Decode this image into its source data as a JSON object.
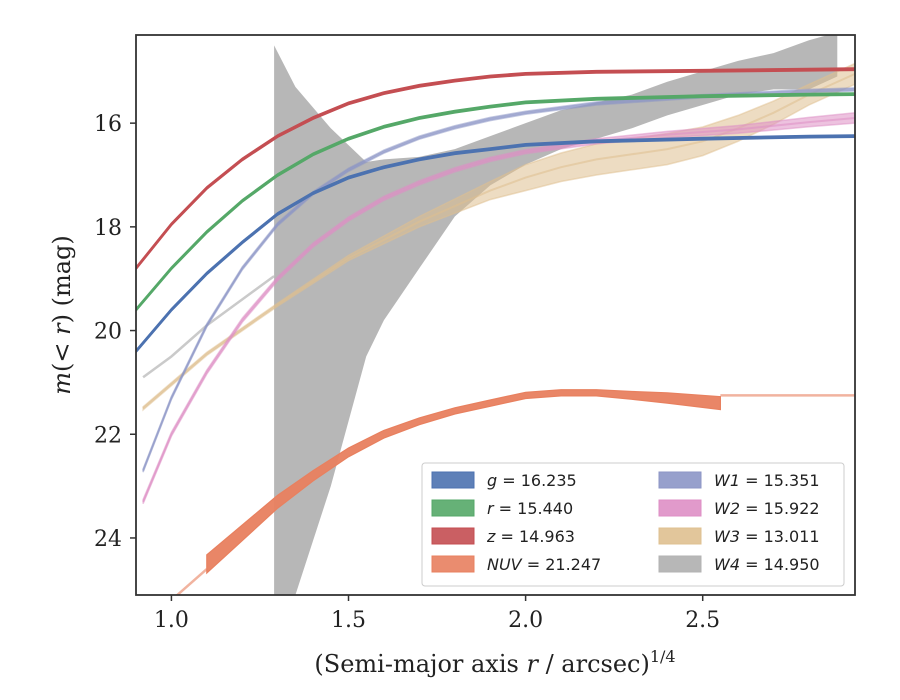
{
  "chart_data": {
    "type": "line",
    "xlabel": "(Semi-major axis r / arcsec)^1/4",
    "ylabel": "m(< r) (mag)",
    "xlim": [
      0.9,
      2.93
    ],
    "ylim": [
      25.1,
      14.3
    ],
    "y_inverted": true,
    "xticks": [
      1.0,
      1.5,
      2.0,
      2.5
    ],
    "yticks": [
      16,
      18,
      20,
      22,
      24
    ],
    "xtick_labels": [
      "1.0",
      "1.5",
      "2.0",
      "2.5"
    ],
    "ytick_labels": [
      "16",
      "18",
      "20",
      "22",
      "24"
    ],
    "grid": false,
    "legend_position": "lower-right",
    "series": [
      {
        "name": "g = 16.235",
        "label_var": "g",
        "label_val": "= 16.235",
        "color": "#4c72b0",
        "x": [
          0.9,
          1.0,
          1.1,
          1.2,
          1.3,
          1.4,
          1.5,
          1.6,
          1.7,
          1.8,
          1.9,
          2.0,
          2.2,
          2.5,
          2.8,
          2.93
        ],
        "y": [
          20.4,
          19.6,
          18.9,
          18.3,
          17.75,
          17.35,
          17.05,
          16.85,
          16.7,
          16.58,
          16.5,
          16.42,
          16.35,
          16.3,
          16.26,
          16.25
        ],
        "band": 0.05
      },
      {
        "name": "r = 15.440",
        "label_var": "r",
        "label_val": "= 15.440",
        "color": "#55a868",
        "x": [
          0.9,
          1.0,
          1.1,
          1.2,
          1.3,
          1.4,
          1.5,
          1.6,
          1.7,
          1.8,
          1.9,
          2.0,
          2.2,
          2.5,
          2.8,
          2.93
        ],
        "y": [
          19.6,
          18.8,
          18.1,
          17.5,
          17.0,
          16.6,
          16.3,
          16.07,
          15.9,
          15.78,
          15.68,
          15.6,
          15.53,
          15.48,
          15.45,
          15.44
        ],
        "band": 0.05
      },
      {
        "name": "z = 14.963",
        "label_var": "z",
        "label_val": "= 14.963",
        "color": "#c44e52",
        "x": [
          0.9,
          1.0,
          1.1,
          1.2,
          1.3,
          1.4,
          1.5,
          1.6,
          1.7,
          1.8,
          1.9,
          2.0,
          2.2,
          2.5,
          2.8,
          2.93
        ],
        "y": [
          18.8,
          17.95,
          17.25,
          16.7,
          16.25,
          15.9,
          15.62,
          15.42,
          15.28,
          15.18,
          15.1,
          15.05,
          15.01,
          14.99,
          14.97,
          14.96
        ],
        "band": 0.05
      },
      {
        "name": "NUV = 21.247",
        "label_var": "NUV",
        "label_val": "= 21.247",
        "color": "#e8805f",
        "x": [
          1.1,
          1.2,
          1.3,
          1.4,
          1.5,
          1.6,
          1.7,
          1.8,
          1.9,
          2.0,
          2.1,
          2.2,
          2.3,
          2.4,
          2.55
        ],
        "y": [
          24.5,
          23.9,
          23.3,
          22.8,
          22.35,
          22.0,
          21.75,
          21.55,
          21.4,
          21.25,
          21.2,
          21.2,
          21.25,
          21.3,
          21.4
        ],
        "band_w": [
          0.35,
          0.3,
          0.25,
          0.2,
          0.17,
          0.15,
          0.13,
          0.12,
          0.12,
          0.12,
          0.12,
          0.12,
          0.15,
          0.2,
          0.25
        ],
        "thin_x": [
          1.0,
          1.1
        ],
        "thin_y": [
          25.2,
          24.6
        ],
        "ext_x": [
          2.55,
          2.93
        ],
        "ext_y": [
          21.25,
          21.25
        ]
      },
      {
        "name": "W1 = 15.351",
        "label_var": "W1",
        "label_val": "= 15.351",
        "color": "#8c96c6",
        "x": [
          0.92,
          1.0,
          1.1,
          1.2,
          1.3,
          1.4,
          1.5,
          1.6,
          1.7,
          1.8,
          1.9,
          2.0,
          2.2,
          2.5,
          2.8,
          2.93
        ],
        "y": [
          22.7,
          21.3,
          19.9,
          18.8,
          17.95,
          17.35,
          16.9,
          16.55,
          16.28,
          16.08,
          15.92,
          15.8,
          15.62,
          15.48,
          15.38,
          15.35
        ],
        "band": 0.06
      },
      {
        "name": "W2 = 15.922",
        "label_var": "W2",
        "label_val": "= 15.922",
        "color": "#de8fc5",
        "x": [
          0.92,
          1.0,
          1.1,
          1.2,
          1.3,
          1.4,
          1.5,
          1.6,
          1.7,
          1.8,
          1.9,
          2.0,
          2.2,
          2.4,
          2.6,
          2.8,
          2.93
        ],
        "y": [
          23.3,
          22.0,
          20.8,
          19.8,
          19.0,
          18.35,
          17.85,
          17.45,
          17.15,
          16.9,
          16.7,
          16.55,
          16.35,
          16.22,
          16.12,
          15.98,
          15.9
        ],
        "band_w": [
          0.08,
          0.08,
          0.08,
          0.08,
          0.08,
          0.08,
          0.08,
          0.08,
          0.08,
          0.08,
          0.08,
          0.08,
          0.1,
          0.12,
          0.15,
          0.18,
          0.2
        ]
      },
      {
        "name": "W3 = 13.011",
        "label_var": "W3",
        "label_val": "= 13.011",
        "color": "#dfc090",
        "x": [
          0.92,
          1.1,
          1.3,
          1.5,
          1.7,
          1.9,
          2.0,
          2.1,
          2.2,
          2.3,
          2.4,
          2.5,
          2.6,
          2.7,
          2.8,
          2.93
        ],
        "y": [
          21.5,
          20.45,
          19.5,
          18.6,
          17.9,
          17.3,
          17.05,
          16.85,
          16.7,
          16.6,
          16.5,
          16.35,
          16.1,
          15.8,
          15.45,
          15.05
        ],
        "band_w": [
          0.06,
          0.06,
          0.06,
          0.1,
          0.2,
          0.35,
          0.5,
          0.55,
          0.6,
          0.6,
          0.6,
          0.55,
          0.5,
          0.45,
          0.4,
          0.4
        ]
      },
      {
        "name": "W4 = 14.950",
        "label_var": "W4",
        "label_val": "= 14.950",
        "color": "#b3b3b3",
        "line_x": [
          0.92,
          1.0,
          1.1,
          1.2,
          1.29
        ],
        "line_y": [
          20.9,
          20.5,
          19.9,
          19.4,
          18.95
        ],
        "band_x": [
          1.29,
          1.35,
          1.45,
          1.55,
          1.6,
          1.7,
          1.8,
          1.9,
          2.0,
          2.1,
          2.2,
          2.3,
          2.4,
          2.5,
          2.6,
          2.7,
          2.8,
          2.88
        ],
        "band_top": [
          14.5,
          15.3,
          16.1,
          16.75,
          16.7,
          16.65,
          16.5,
          16.25,
          16.0,
          15.75,
          15.6,
          15.45,
          15.2,
          15.0,
          14.8,
          14.65,
          14.4,
          14.25
        ],
        "band_bot": [
          25.1,
          25.1,
          23.0,
          20.5,
          19.8,
          18.8,
          17.8,
          17.2,
          16.8,
          16.5,
          16.3,
          16.1,
          15.85,
          15.65,
          15.45,
          15.35,
          15.35,
          15.1
        ]
      }
    ]
  }
}
